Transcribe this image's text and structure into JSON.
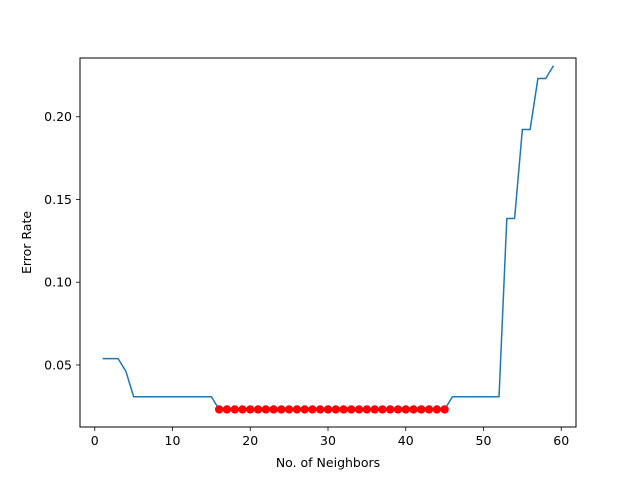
{
  "chart_data": {
    "type": "line",
    "title": "",
    "xlabel": "No. of Neighbors",
    "ylabel": "Error Rate",
    "xlim": [
      -1.9,
      61.9
    ],
    "ylim": [
      0.0125,
      0.2355
    ],
    "xticks": [
      0,
      10,
      20,
      30,
      40,
      50,
      60
    ],
    "yticks": [
      0.05,
      0.1,
      0.15,
      0.2
    ],
    "ytick_labels": [
      "0.05",
      "0.10",
      "0.15",
      "0.20"
    ],
    "grid": false,
    "legend": "none",
    "series": [
      {
        "color": "#1f77b4",
        "style": "line",
        "x": [
          1,
          2,
          3,
          4,
          5,
          6,
          7,
          8,
          9,
          10,
          11,
          12,
          13,
          14,
          15,
          16,
          17,
          18,
          19,
          20,
          21,
          22,
          23,
          24,
          25,
          26,
          27,
          28,
          29,
          30,
          31,
          32,
          33,
          34,
          35,
          36,
          37,
          38,
          39,
          40,
          41,
          42,
          43,
          44,
          45,
          46,
          47,
          48,
          49,
          50,
          51,
          52,
          53,
          54,
          55,
          56,
          57,
          58,
          59
        ],
        "y": [
          0.0538,
          0.0538,
          0.0538,
          0.0462,
          0.0308,
          0.0308,
          0.0308,
          0.0308,
          0.0308,
          0.0308,
          0.0308,
          0.0308,
          0.0308,
          0.0308,
          0.0308,
          0.0231,
          0.0231,
          0.0231,
          0.0231,
          0.0231,
          0.0231,
          0.0231,
          0.0231,
          0.0231,
          0.0231,
          0.0231,
          0.0231,
          0.0231,
          0.0231,
          0.0231,
          0.0231,
          0.0231,
          0.0231,
          0.0231,
          0.0231,
          0.0231,
          0.0231,
          0.0231,
          0.0231,
          0.0231,
          0.0231,
          0.0231,
          0.0231,
          0.0231,
          0.0231,
          0.0308,
          0.0308,
          0.0308,
          0.0308,
          0.0308,
          0.0308,
          0.0308,
          0.1385,
          0.1385,
          0.1923,
          0.1923,
          0.2231,
          0.2231,
          0.2308
        ]
      },
      {
        "color": "#ff0000",
        "style": "markers",
        "x": [
          16,
          17,
          18,
          19,
          20,
          21,
          22,
          23,
          24,
          25,
          26,
          27,
          28,
          29,
          30,
          31,
          32,
          33,
          34,
          35,
          36,
          37,
          38,
          39,
          40,
          41,
          42,
          43,
          44,
          45
        ],
        "y": [
          0.0231,
          0.0231,
          0.0231,
          0.0231,
          0.0231,
          0.0231,
          0.0231,
          0.0231,
          0.0231,
          0.0231,
          0.0231,
          0.0231,
          0.0231,
          0.0231,
          0.0231,
          0.0231,
          0.0231,
          0.0231,
          0.0231,
          0.0231,
          0.0231,
          0.0231,
          0.0231,
          0.0231,
          0.0231,
          0.0231,
          0.0231,
          0.0231,
          0.0231,
          0.0231
        ]
      }
    ]
  }
}
